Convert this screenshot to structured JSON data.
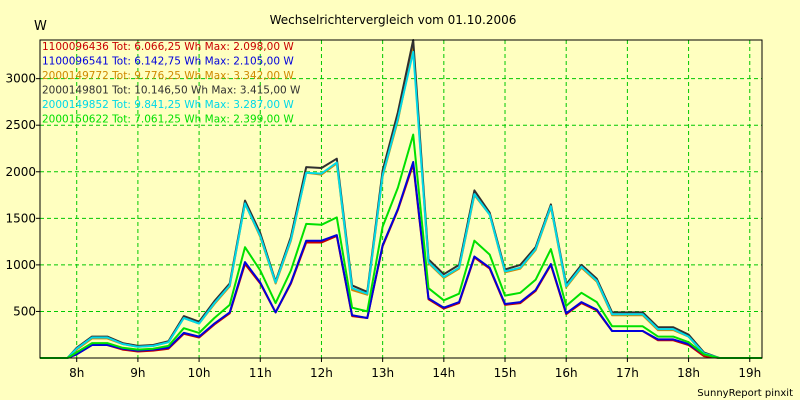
{
  "chart_data": {
    "type": "line",
    "title": "Wechselrichtervergleich vom 01.10.2006",
    "ylabel": "W",
    "xlabel": "",
    "credit": "SunnyReport pinxit",
    "ylim": [
      0,
      3415
    ],
    "xlim": [
      7.4,
      19.2
    ],
    "grid": true,
    "legend_position": "top-left",
    "x_ticks": [
      {
        "v": 8,
        "label": "8h"
      },
      {
        "v": 9,
        "label": "9h"
      },
      {
        "v": 10,
        "label": "10h"
      },
      {
        "v": 11,
        "label": "11h"
      },
      {
        "v": 12,
        "label": "12h"
      },
      {
        "v": 13,
        "label": "13h"
      },
      {
        "v": 14,
        "label": "14h"
      },
      {
        "v": 15,
        "label": "15h"
      },
      {
        "v": 16,
        "label": "16h"
      },
      {
        "v": 17,
        "label": "17h"
      },
      {
        "v": 18,
        "label": "18h"
      },
      {
        "v": 19,
        "label": "19h"
      }
    ],
    "y_ticks": [
      500,
      1000,
      1500,
      2000,
      2500,
      3000
    ],
    "x": [
      7.4,
      7.55,
      7.7,
      7.85,
      8.0,
      8.25,
      8.5,
      8.75,
      9.0,
      9.25,
      9.5,
      9.75,
      10.0,
      10.25,
      10.5,
      10.75,
      11.0,
      11.25,
      11.5,
      11.75,
      12.0,
      12.25,
      12.5,
      12.75,
      13.0,
      13.25,
      13.5,
      13.75,
      14.0,
      14.25,
      14.5,
      14.75,
      15.0,
      15.25,
      15.5,
      15.75,
      16.0,
      16.25,
      16.5,
      16.75,
      17.0,
      17.25,
      17.5,
      17.75,
      18.0,
      18.25,
      18.5,
      18.75,
      19.0,
      19.2
    ],
    "series": [
      {
        "name": "1100096436 Tot: 6.066,25 Wh Max: 2.098,00 W",
        "color": "#c80000",
        "values": [
          0,
          0,
          0,
          0,
          40,
          140,
          140,
          90,
          70,
          80,
          100,
          260,
          220,
          360,
          480,
          1010,
          800,
          490,
          800,
          1240,
          1240,
          1310,
          450,
          430,
          1200,
          1590,
          2080,
          630,
          530,
          590,
          1080,
          960,
          570,
          590,
          720,
          1000,
          470,
          590,
          510,
          290,
          290,
          290,
          190,
          190,
          140,
          20,
          0,
          0,
          0,
          0
        ]
      },
      {
        "name": "1100096541 Tot: 6.142,75 Wh Max: 2.105,00 W",
        "color": "#0000dc",
        "values": [
          0,
          0,
          0,
          0,
          40,
          140,
          140,
          100,
          80,
          90,
          110,
          270,
          230,
          370,
          490,
          1030,
          810,
          490,
          810,
          1260,
          1260,
          1320,
          460,
          430,
          1210,
          1600,
          2105,
          640,
          540,
          600,
          1090,
          970,
          580,
          600,
          730,
          1010,
          480,
          600,
          520,
          290,
          290,
          290,
          200,
          200,
          150,
          40,
          0,
          0,
          0,
          0
        ]
      },
      {
        "name": "2000149772 Tot: 9.776,25 Wh Max: 3.342,00 W",
        "color": "#d08800",
        "values": [
          0,
          0,
          0,
          0,
          90,
          210,
          210,
          150,
          120,
          130,
          170,
          430,
          370,
          580,
          770,
          1660,
          1300,
          800,
          1260,
          1990,
          1970,
          2090,
          730,
          680,
          1950,
          2550,
          3342,
          1020,
          860,
          960,
          1750,
          1540,
          920,
          960,
          1160,
          1620,
          760,
          970,
          820,
          460,
          460,
          460,
          300,
          300,
          230,
          40,
          0,
          0,
          0,
          0
        ]
      },
      {
        "name": "2000149801 Tot: 10.146,50 Wh Max: 3.415,00 W",
        "color": "#303030",
        "values": [
          0,
          0,
          0,
          0,
          110,
          230,
          230,
          160,
          130,
          140,
          180,
          450,
          390,
          610,
          800,
          1690,
          1340,
          820,
          1300,
          2050,
          2040,
          2140,
          780,
          710,
          2010,
          2640,
          3415,
          1060,
          900,
          1000,
          1800,
          1560,
          950,
          1000,
          1190,
          1650,
          790,
          1000,
          850,
          490,
          490,
          490,
          330,
          330,
          250,
          60,
          0,
          0,
          0,
          0
        ]
      },
      {
        "name": "2000149852 Tot: 9.841,25 Wh Max: 3.287,00 W",
        "color": "#00d8e8",
        "values": [
          0,
          0,
          0,
          0,
          100,
          220,
          220,
          150,
          120,
          130,
          170,
          430,
          370,
          590,
          780,
          1660,
          1310,
          810,
          1270,
          1990,
          1980,
          2100,
          750,
          690,
          1960,
          2570,
          3287,
          1030,
          870,
          970,
          1760,
          1540,
          930,
          970,
          1170,
          1630,
          770,
          980,
          830,
          470,
          470,
          470,
          310,
          310,
          230,
          50,
          0,
          0,
          0,
          0
        ]
      },
      {
        "name": "2000150622 Tot: 7.061,25 Wh Max: 2.399,00 W",
        "color": "#00e000",
        "values": [
          0,
          0,
          0,
          0,
          60,
          160,
          160,
          110,
          90,
          100,
          130,
          320,
          270,
          430,
          570,
          1190,
          940,
          590,
          940,
          1440,
          1430,
          1510,
          540,
          500,
          1410,
          1830,
          2399,
          750,
          620,
          690,
          1260,
          1110,
          670,
          700,
          840,
          1170,
          560,
          700,
          600,
          340,
          340,
          340,
          230,
          230,
          170,
          40,
          0,
          0,
          0,
          0
        ]
      }
    ]
  }
}
